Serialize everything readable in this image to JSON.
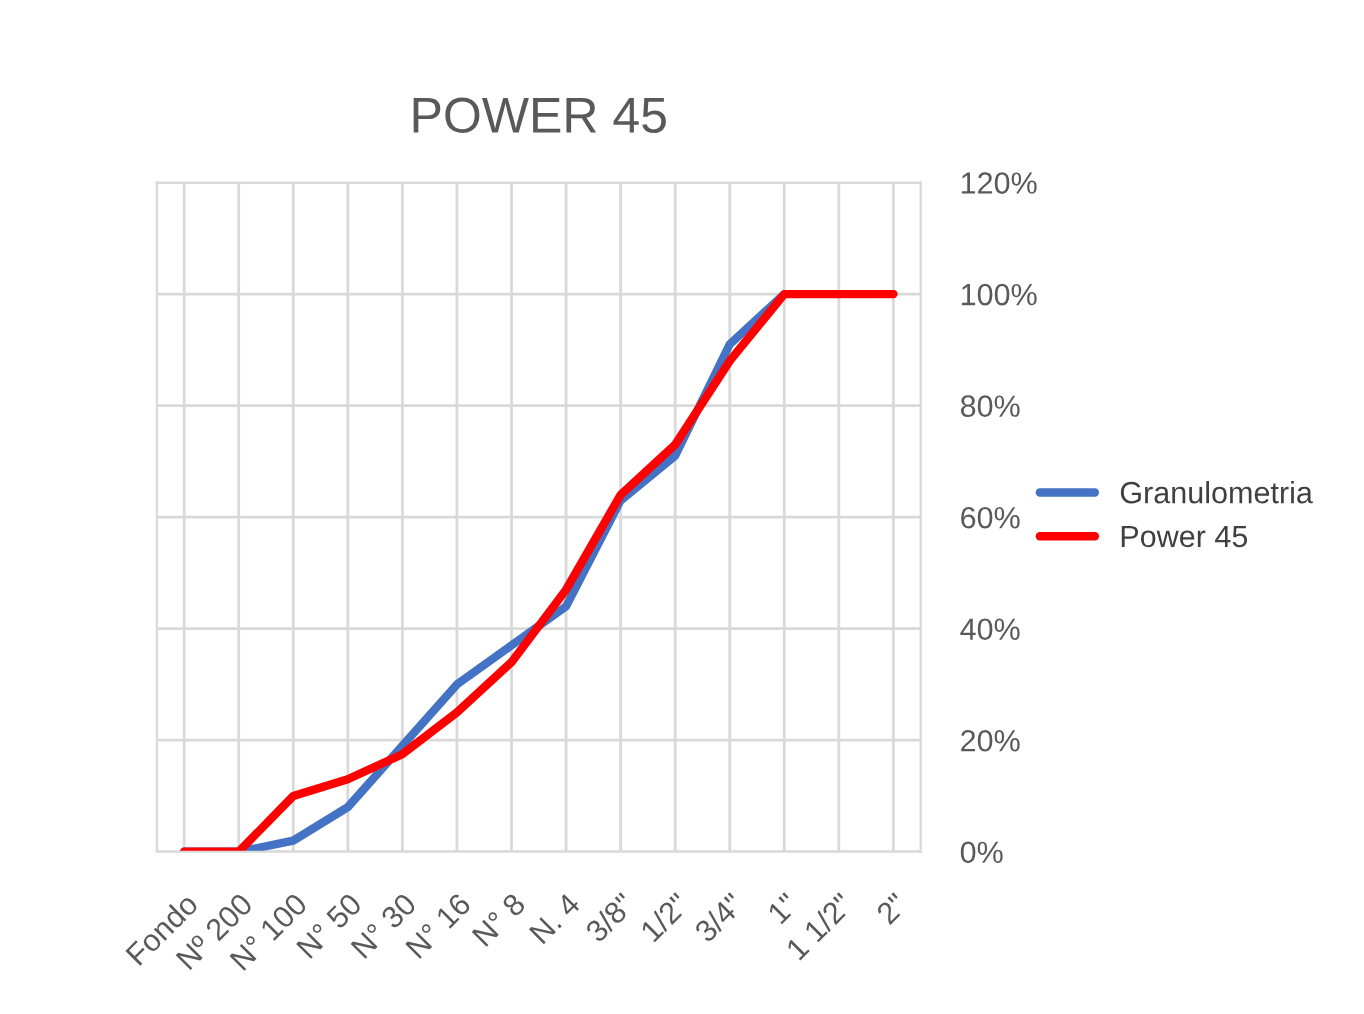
{
  "chart_data": {
    "type": "line",
    "title": "POWER 45",
    "categories": [
      "Fondo",
      "Nº 200",
      "N° 100",
      "N° 50",
      "N° 30",
      "N° 16",
      "N° 8",
      "N. 4",
      "3/8\"",
      "1/2\"",
      "3/4\"",
      "1\"",
      "1 1/2\"",
      "2\""
    ],
    "series": [
      {
        "name": "Granulometria",
        "color": "#4472c4",
        "values": [
          0,
          0,
          2,
          8,
          19,
          30,
          37,
          44,
          63,
          71,
          91,
          100,
          null,
          null
        ]
      },
      {
        "name": "Power 45",
        "color": "#ff0000",
        "values": [
          0,
          0,
          10,
          13,
          17.5,
          25,
          34,
          47,
          64,
          73,
          88,
          100,
          100,
          100
        ]
      }
    ],
    "ylim": [
      0,
      120
    ],
    "yticks": [
      {
        "value": 0,
        "label": "0%"
      },
      {
        "value": 20,
        "label": "20%"
      },
      {
        "value": 40,
        "label": "40%"
      },
      {
        "value": 60,
        "label": "60%"
      },
      {
        "value": 80,
        "label": "80%"
      },
      {
        "value": 100,
        "label": "100%"
      },
      {
        "value": 120,
        "label": "120%"
      }
    ],
    "grid": true,
    "legend": "right",
    "marker": "none",
    "line_style": "solid"
  }
}
